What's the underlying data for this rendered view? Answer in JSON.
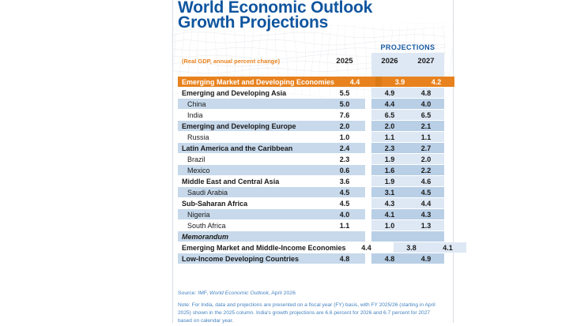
{
  "title": {
    "line1": "World Economic Outlook",
    "line2": "Growth Projections"
  },
  "header": {
    "subtitle": "(Real GDP, annual percent change)",
    "projections_label": "PROJECTIONS",
    "years": [
      "2025",
      "2026",
      "2027"
    ]
  },
  "table": {
    "rows": [
      {
        "label": "Emerging Market and Developing Economies",
        "values": [
          "4.4",
          "3.9",
          "4.2"
        ]
      },
      {
        "label": "Emerging and Developing Asia",
        "values": [
          "5.5",
          "4.9",
          "4.8"
        ]
      },
      {
        "label": "China",
        "values": [
          "5.0",
          "4.4",
          "4.0"
        ]
      },
      {
        "label": "India",
        "values": [
          "7.6",
          "6.5",
          "6.5"
        ]
      },
      {
        "label": "Emerging and Developing Europe",
        "values": [
          "2.0",
          "2.0",
          "2.1"
        ]
      },
      {
        "label": "Russia",
        "values": [
          "1.0",
          "1.1",
          "1.1"
        ]
      },
      {
        "label": "Latin America and the Caribbean",
        "values": [
          "2.4",
          "2.3",
          "2.7"
        ]
      },
      {
        "label": "Brazil",
        "values": [
          "2.3",
          "1.9",
          "2.0"
        ]
      },
      {
        "label": "Mexico",
        "values": [
          "0.6",
          "1.6",
          "2.2"
        ]
      },
      {
        "label": "Middle East and Central Asia",
        "values": [
          "3.6",
          "1.9",
          "4.6"
        ]
      },
      {
        "label": "Saudi Arabia",
        "values": [
          "4.5",
          "3.1",
          "4.5"
        ]
      },
      {
        "label": "Sub-Saharan Africa",
        "values": [
          "4.5",
          "4.3",
          "4.4"
        ]
      },
      {
        "label": "Nigeria",
        "values": [
          "4.0",
          "4.1",
          "4.3"
        ]
      },
      {
        "label": "South Africa",
        "values": [
          "1.1",
          "1.0",
          "1.3"
        ]
      },
      {
        "label": "Memorandum",
        "values": [
          "",
          "",
          ""
        ]
      },
      {
        "label": "Emerging Market and Middle-Income Economies",
        "values": [
          "4.4",
          "3.8",
          "4.1"
        ]
      },
      {
        "label": "Low-Income Developing Countries",
        "values": [
          "4.8",
          "4.8",
          "4.9"
        ]
      }
    ]
  },
  "footer": {
    "source_prefix": "Source: IMF, ",
    "source_italic": "World Economic Outlook",
    "source_suffix": ", April 2026",
    "note": "Note: For India, data and projections are presented on a fiscal year (FY) basis, with FY 2025/26 (starting in April 2025) shown in the 2025 column. India's growth projections are 6.6 percent for 2026 and 6.7 percent for 2027 based on calendar year."
  },
  "colors": {
    "orange": "#E8821E",
    "orange_dark": "#DB7A16",
    "stripe": "#C7D9EB",
    "band_light": "#DEE8F4",
    "band_dark": "#B9CFE6",
    "title_blue": "#0F559E",
    "proj_blue": "#1558A0",
    "footer_blue": "#4583C1"
  },
  "chart_data": {
    "type": "table",
    "title": "World Economic Outlook Growth Projections",
    "subtitle": "(Real GDP, annual percent change)",
    "column_group_label": "PROJECTIONS (2026, 2027)",
    "columns": [
      "2025",
      "2026",
      "2027"
    ],
    "rows": [
      {
        "label": "Emerging Market and Developing Economies",
        "values": [
          4.4,
          3.9,
          4.2
        ],
        "highlight": "orange"
      },
      {
        "label": "Emerging and Developing Asia",
        "values": [
          5.5,
          4.9,
          4.8
        ]
      },
      {
        "label": "China",
        "values": [
          5.0,
          4.4,
          4.0
        ]
      },
      {
        "label": "India",
        "values": [
          7.6,
          6.5,
          6.5
        ]
      },
      {
        "label": "Emerging and Developing Europe",
        "values": [
          2.0,
          2.0,
          2.1
        ]
      },
      {
        "label": "Russia",
        "values": [
          1.0,
          1.1,
          1.1
        ]
      },
      {
        "label": "Latin America and the Caribbean",
        "values": [
          2.4,
          2.3,
          2.7
        ]
      },
      {
        "label": "Brazil",
        "values": [
          2.3,
          1.9,
          2.0
        ]
      },
      {
        "label": "Mexico",
        "values": [
          0.6,
          1.6,
          2.2
        ]
      },
      {
        "label": "Middle East and Central Asia",
        "values": [
          3.6,
          1.9,
          4.6
        ]
      },
      {
        "label": "Saudi Arabia",
        "values": [
          4.5,
          3.1,
          4.5
        ]
      },
      {
        "label": "Sub-Saharan Africa",
        "values": [
          4.5,
          4.3,
          4.4
        ]
      },
      {
        "label": "Nigeria",
        "values": [
          4.0,
          4.1,
          4.3
        ]
      },
      {
        "label": "South Africa",
        "values": [
          1.1,
          1.0,
          1.3
        ]
      },
      {
        "label": "Memorandum",
        "values": []
      },
      {
        "label": "Emerging Market and Middle-Income Economies",
        "values": [
          4.4,
          3.8,
          4.1
        ]
      },
      {
        "label": "Low-Income Developing Countries",
        "values": [
          4.8,
          4.8,
          4.9
        ]
      }
    ]
  }
}
